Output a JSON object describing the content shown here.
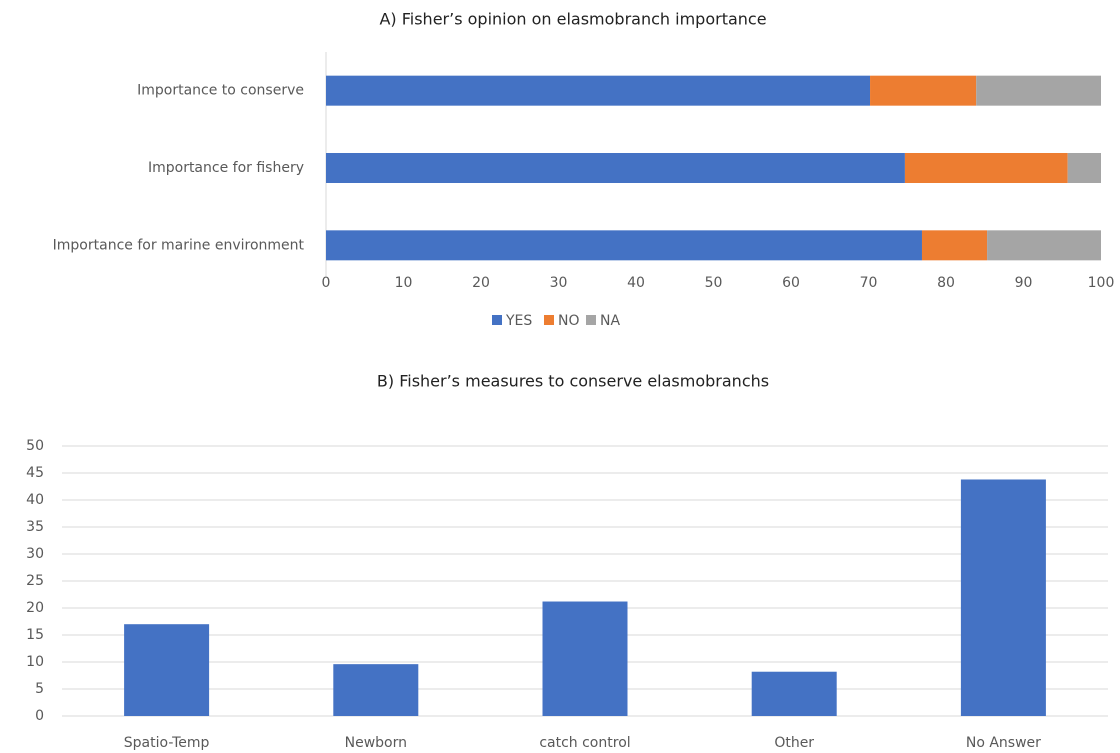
{
  "chart_data": [
    {
      "type": "stacked_barh",
      "title": "A) Fisher’s opinion on elasmobranch importance",
      "categories": [
        "Importance to conserve",
        "Importance for fishery",
        "Importance for marine environment"
      ],
      "series": [
        {
          "name": "YES",
          "color": "#4472c4",
          "values": [
            70.2,
            74.7,
            76.9
          ]
        },
        {
          "name": "NO",
          "color": "#ed7d31",
          "values": [
            13.7,
            21.0,
            8.4
          ]
        },
        {
          "name": "NA",
          "color": "#a5a5a5",
          "values": [
            16.1,
            4.3,
            14.7
          ]
        }
      ],
      "xlim": [
        0,
        100
      ],
      "xticks": [
        0,
        10,
        20,
        30,
        40,
        50,
        60,
        70,
        80,
        90,
        100
      ],
      "legend": "bottom"
    },
    {
      "type": "bar",
      "title": "B) Fisher’s measures to conserve elasmobranchs",
      "categories": [
        "Spatio-Temp",
        "Newborn",
        "catch control",
        "Other",
        "No Answer"
      ],
      "values": [
        17.0,
        9.6,
        21.2,
        8.2,
        43.8
      ],
      "color": "#4472c4",
      "ylim": [
        0,
        50
      ],
      "yticks": [
        0,
        5,
        10,
        15,
        20,
        25,
        30,
        35,
        40,
        45,
        50
      ],
      "grid": true
    }
  ]
}
